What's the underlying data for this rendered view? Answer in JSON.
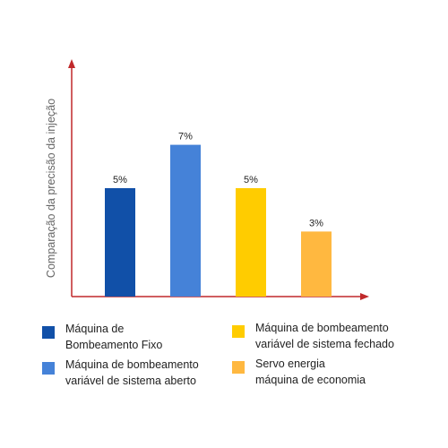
{
  "chart_data": {
    "type": "bar",
    "title": "",
    "xlabel": "",
    "ylabel": "Comparação da precisão da injeção",
    "categories": [
      "Máquina de\nBombeamento Fixo",
      "Máquina de bombeamento\nvariável de sistema aberto",
      "Máquina de bombeamento\nvariável de sistema fechado",
      "Servo energia\nmáquina de economia"
    ],
    "values": [
      5,
      7,
      5,
      3
    ],
    "value_labels": [
      "5%",
      "7%",
      "5%",
      "3%"
    ],
    "colors": [
      "#1150a8",
      "#4582d8",
      "#ffcc00",
      "#ffb840"
    ],
    "ylim": [
      0,
      10
    ],
    "grid": false,
    "legend_position": "bottom",
    "axis_color": "#c0292b"
  }
}
